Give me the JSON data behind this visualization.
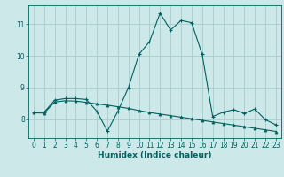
{
  "xlabel": "Humidex (Indice chaleur)",
  "bg_color": "#cce8e8",
  "grid_color": "#aacccc",
  "line_color": "#006060",
  "x_values": [
    0,
    1,
    2,
    3,
    4,
    5,
    6,
    7,
    8,
    9,
    10,
    11,
    12,
    13,
    14,
    15,
    16,
    17,
    18,
    19,
    20,
    21,
    22,
    23
  ],
  "curve1": [
    8.2,
    8.22,
    8.6,
    8.65,
    8.65,
    8.62,
    8.25,
    7.62,
    8.25,
    9.0,
    10.05,
    10.45,
    11.35,
    10.82,
    11.12,
    11.05,
    10.05,
    8.08,
    8.22,
    8.3,
    8.18,
    8.32,
    7.98,
    7.82
  ],
  "curve2": [
    8.2,
    8.19,
    8.54,
    8.58,
    8.57,
    8.53,
    8.48,
    8.44,
    8.39,
    8.34,
    8.27,
    8.21,
    8.16,
    8.11,
    8.06,
    8.01,
    7.96,
    7.91,
    7.86,
    7.81,
    7.76,
    7.71,
    7.66,
    7.61
  ],
  "ylim": [
    7.4,
    11.6
  ],
  "xlim": [
    -0.5,
    23.5
  ],
  "yticks": [
    8,
    9,
    10,
    11
  ],
  "xticks": [
    0,
    1,
    2,
    3,
    4,
    5,
    6,
    7,
    8,
    9,
    10,
    11,
    12,
    13,
    14,
    15,
    16,
    17,
    18,
    19,
    20,
    21,
    22,
    23
  ],
  "tick_fontsize": 5.5,
  "xlabel_fontsize": 6.5
}
